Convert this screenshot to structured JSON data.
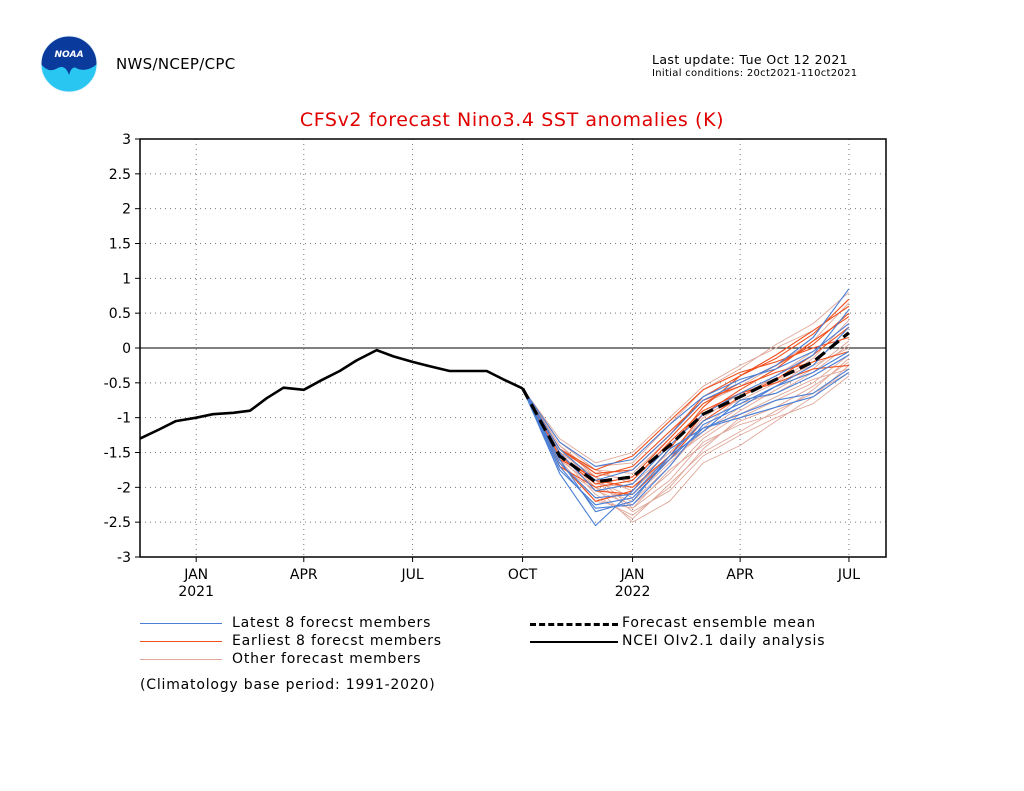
{
  "header": {
    "agency": "NWS/NCEP/CPC",
    "last_update": "Last update: Tue Oct 12 2021",
    "initial_conditions": "Initial conditions: 20ct2021-110ct2021",
    "logo_text": "NOAA"
  },
  "legend": {
    "latest": "Latest 8 forecst members",
    "earliest": "Earliest 8 forecst members",
    "other": "Other forecast members",
    "mean": "Forecast ensemble mean",
    "analysis": "NCEI OIv2.1 daily analysis"
  },
  "footnote": "(Climatology base period: 1991-2020)",
  "colors": {
    "latest": "#4a7fd6",
    "earliest": "#f0501e",
    "other": "#e0a89a",
    "mean": "#000000",
    "analysis": "#000000",
    "title": "#e00000"
  },
  "chart_data": {
    "type": "line",
    "title": "CFSv2 forecast Nino3.4 SST anomalies (K)",
    "ylim": [
      -3,
      3
    ],
    "yticks": [
      "3",
      "2.5",
      "2",
      "1.5",
      "1",
      "0.5",
      "0",
      "-0.5",
      "-1",
      "-1.5",
      "-2",
      "-2.5",
      "-3"
    ],
    "xlim": [
      "2020-11-15",
      "2022-08-01"
    ],
    "xticks": [
      {
        "label": "JAN",
        "sub": "2021",
        "date": "2021-01-01"
      },
      {
        "label": "APR",
        "sub": "",
        "date": "2021-04-01"
      },
      {
        "label": "JUL",
        "sub": "",
        "date": "2021-07-01"
      },
      {
        "label": "OCT",
        "sub": "",
        "date": "2021-10-01"
      },
      {
        "label": "JAN",
        "sub": "2022",
        "date": "2022-01-01"
      },
      {
        "label": "APR",
        "sub": "",
        "date": "2022-04-01"
      },
      {
        "label": "JUL",
        "sub": "",
        "date": "2022-07-01"
      }
    ],
    "grid": true,
    "analysis": {
      "name": "NCEI OIv2.1 daily analysis",
      "x": [
        "2020-11-15",
        "2020-12-01",
        "2020-12-15",
        "2021-01-01",
        "2021-01-15",
        "2021-02-01",
        "2021-02-15",
        "2021-03-01",
        "2021-03-15",
        "2021-04-01",
        "2021-04-15",
        "2021-05-01",
        "2021-05-15",
        "2021-06-01",
        "2021-06-15",
        "2021-07-01",
        "2021-07-15",
        "2021-08-01",
        "2021-08-15",
        "2021-09-01",
        "2021-09-15",
        "2021-10-01"
      ],
      "y": [
        -1.3,
        -1.17,
        -1.05,
        -1.0,
        -0.95,
        -0.93,
        -0.9,
        -0.72,
        -0.57,
        -0.6,
        -0.47,
        -0.33,
        -0.18,
        -0.03,
        -0.12,
        -0.2,
        -0.26,
        -0.33,
        -0.33,
        -0.33,
        -0.45,
        -0.58
      ]
    },
    "ensemble_mean": {
      "name": "Forecast ensemble mean",
      "x": [
        "2021-10-01",
        "2021-11-01",
        "2021-12-01",
        "2022-01-01",
        "2022-02-01",
        "2022-03-01",
        "2022-04-01",
        "2022-05-01",
        "2022-06-01",
        "2022-07-01"
      ],
      "y": [
        -0.58,
        -1.55,
        -1.92,
        -1.85,
        -1.4,
        -0.95,
        -0.7,
        -0.45,
        -0.2,
        0.22
      ]
    },
    "member_months": [
      "2021-10-01",
      "2021-11-01",
      "2021-12-01",
      "2022-01-01",
      "2022-02-01",
      "2022-03-01",
      "2022-04-01",
      "2022-05-01",
      "2022-06-01",
      "2022-07-01"
    ],
    "latest_members": [
      [
        -0.58,
        -1.8,
        -2.55,
        -2.05,
        -1.45,
        -1.15,
        -0.95,
        -0.75,
        -0.65,
        -0.3
      ],
      [
        -0.58,
        -1.7,
        -2.3,
        -2.25,
        -1.7,
        -1.1,
        -0.85,
        -0.55,
        -0.25,
        0.3
      ],
      [
        -0.58,
        -1.6,
        -2.35,
        -2.2,
        -1.55,
        -1.2,
        -0.75,
        -0.65,
        -0.4,
        -0.1
      ],
      [
        -0.58,
        -1.45,
        -1.9,
        -1.75,
        -1.25,
        -0.75,
        -0.5,
        -0.25,
        0.15,
        0.85
      ],
      [
        -0.58,
        -1.5,
        -2.05,
        -1.95,
        -1.4,
        -0.95,
        -0.65,
        -0.4,
        -0.1,
        0.55
      ],
      [
        -0.58,
        -1.65,
        -2.15,
        -2.1,
        -1.55,
        -1.05,
        -0.8,
        -0.55,
        -0.35,
        -0.05
      ],
      [
        -0.58,
        -1.35,
        -1.7,
        -1.6,
        -1.1,
        -0.7,
        -0.45,
        -0.3,
        -0.05,
        0.35
      ],
      [
        -0.58,
        -1.75,
        -2.25,
        -2.15,
        -1.6,
        -1.15,
        -1.0,
        -0.85,
        -0.7,
        -0.35
      ]
    ],
    "earliest_members": [
      [
        -0.58,
        -1.45,
        -1.8,
        -1.75,
        -1.25,
        -0.7,
        -0.4,
        -0.15,
        0.2,
        0.7
      ],
      [
        -0.58,
        -1.55,
        -1.95,
        -1.85,
        -1.3,
        -0.8,
        -0.5,
        -0.25,
        0.05,
        0.5
      ],
      [
        -0.58,
        -1.5,
        -2.05,
        -2.1,
        -1.6,
        -1.05,
        -0.7,
        -0.45,
        -0.1,
        0.3
      ],
      [
        -0.58,
        -1.6,
        -1.85,
        -1.7,
        -1.2,
        -0.75,
        -0.55,
        -0.35,
        -0.2,
        -0.05
      ],
      [
        -0.58,
        -1.65,
        -2.2,
        -2.05,
        -1.45,
        -0.85,
        -0.4,
        -0.1,
        0.25,
        0.6
      ],
      [
        -0.58,
        -1.45,
        -1.75,
        -1.55,
        -1.05,
        -0.6,
        -0.35,
        -0.2,
        0.0,
        0.15
      ],
      [
        -0.58,
        -1.7,
        -2.0,
        -1.9,
        -1.35,
        -0.9,
        -0.65,
        -0.5,
        -0.3,
        -0.25
      ],
      [
        -0.58,
        -1.55,
        -1.9,
        -2.0,
        -1.55,
        -0.95,
        -0.6,
        -0.3,
        0.1,
        0.45
      ]
    ],
    "other_members": [
      [
        -0.58,
        -1.4,
        -1.85,
        -2.3,
        -1.75,
        -1.4,
        -1.05,
        -0.85,
        -0.55,
        -0.2
      ],
      [
        -0.58,
        -1.55,
        -2.1,
        -2.45,
        -1.95,
        -1.5,
        -1.2,
        -0.9,
        -0.65,
        -0.35
      ],
      [
        -0.58,
        -1.35,
        -1.7,
        -1.65,
        -1.1,
        -0.6,
        -0.3,
        0.05,
        0.35,
        0.8
      ],
      [
        -0.58,
        -1.5,
        -2.0,
        -2.5,
        -2.2,
        -1.65,
        -1.4,
        -1.05,
        -0.7,
        -0.25
      ],
      [
        -0.58,
        -1.6,
        -2.2,
        -2.3,
        -1.9,
        -1.35,
        -1.1,
        -0.95,
        -0.6,
        -0.15
      ],
      [
        -0.58,
        -1.3,
        -1.65,
        -1.5,
        -1.0,
        -0.55,
        -0.25,
        0.0,
        0.25,
        0.6
      ],
      [
        -0.58,
        -1.45,
        -1.95,
        -2.0,
        -1.6,
        -1.25,
        -0.9,
        -0.6,
        -0.3,
        0.1
      ],
      [
        -0.58,
        -1.7,
        -2.05,
        -2.25,
        -1.8,
        -1.3,
        -0.95,
        -0.7,
        -0.45,
        -0.3
      ],
      [
        -0.58,
        -1.4,
        -1.8,
        -1.9,
        -1.4,
        -0.95,
        -0.75,
        -0.5,
        -0.15,
        0.4
      ],
      [
        -0.58,
        -1.55,
        -1.9,
        -2.35,
        -2.05,
        -1.55,
        -1.25,
        -1.0,
        -0.8,
        -0.4
      ],
      [
        -0.58,
        -1.5,
        -1.75,
        -1.8,
        -1.3,
        -0.8,
        -0.55,
        -0.25,
        0.1,
        0.65
      ],
      [
        -0.58,
        -1.65,
        -2.15,
        -2.4,
        -2.0,
        -1.45,
        -1.0,
        -0.75,
        -0.5,
        -0.1
      ],
      [
        -0.58,
        -1.45,
        -1.9,
        -2.15,
        -1.65,
        -1.2,
        -0.85,
        -0.55,
        -0.2,
        0.2
      ],
      [
        -0.58,
        -1.35,
        -1.75,
        -1.95,
        -1.5,
        -1.05,
        -0.8,
        -0.65,
        -0.35,
        0.05
      ],
      [
        -0.58,
        -1.6,
        -2.0,
        -2.2,
        -1.7,
        -1.15,
        -0.7,
        -0.4,
        -0.05,
        0.35
      ],
      [
        -0.58,
        -1.5,
        -1.85,
        -2.05,
        -1.55,
        -1.0,
        -0.65,
        -0.45,
        -0.25,
        0.0
      ]
    ]
  }
}
